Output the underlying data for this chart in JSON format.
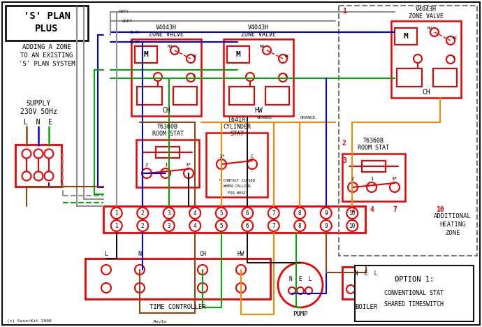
{
  "bg_color": "#ffffff",
  "grey": "#909090",
  "blue": "#0000ee",
  "green": "#00aa00",
  "orange": "#ff8800",
  "brown": "#8B4513",
  "black": "#111111",
  "red": "#ee0000",
  "dark_red": "#cc0000",
  "title1": "'S' PLAN",
  "title2": "PLUS",
  "subtitle1": "ADDING A ZONE",
  "subtitle2": "TO AN EXISTING",
  "subtitle3": "'S' PLAN SYSTEM",
  "supply_label": "SUPPLY",
  "supply_v": "230V 50Hz",
  "lne": "L  N  E",
  "copyright": "(c) SaverKit 2008",
  "rev": "Rev1a"
}
